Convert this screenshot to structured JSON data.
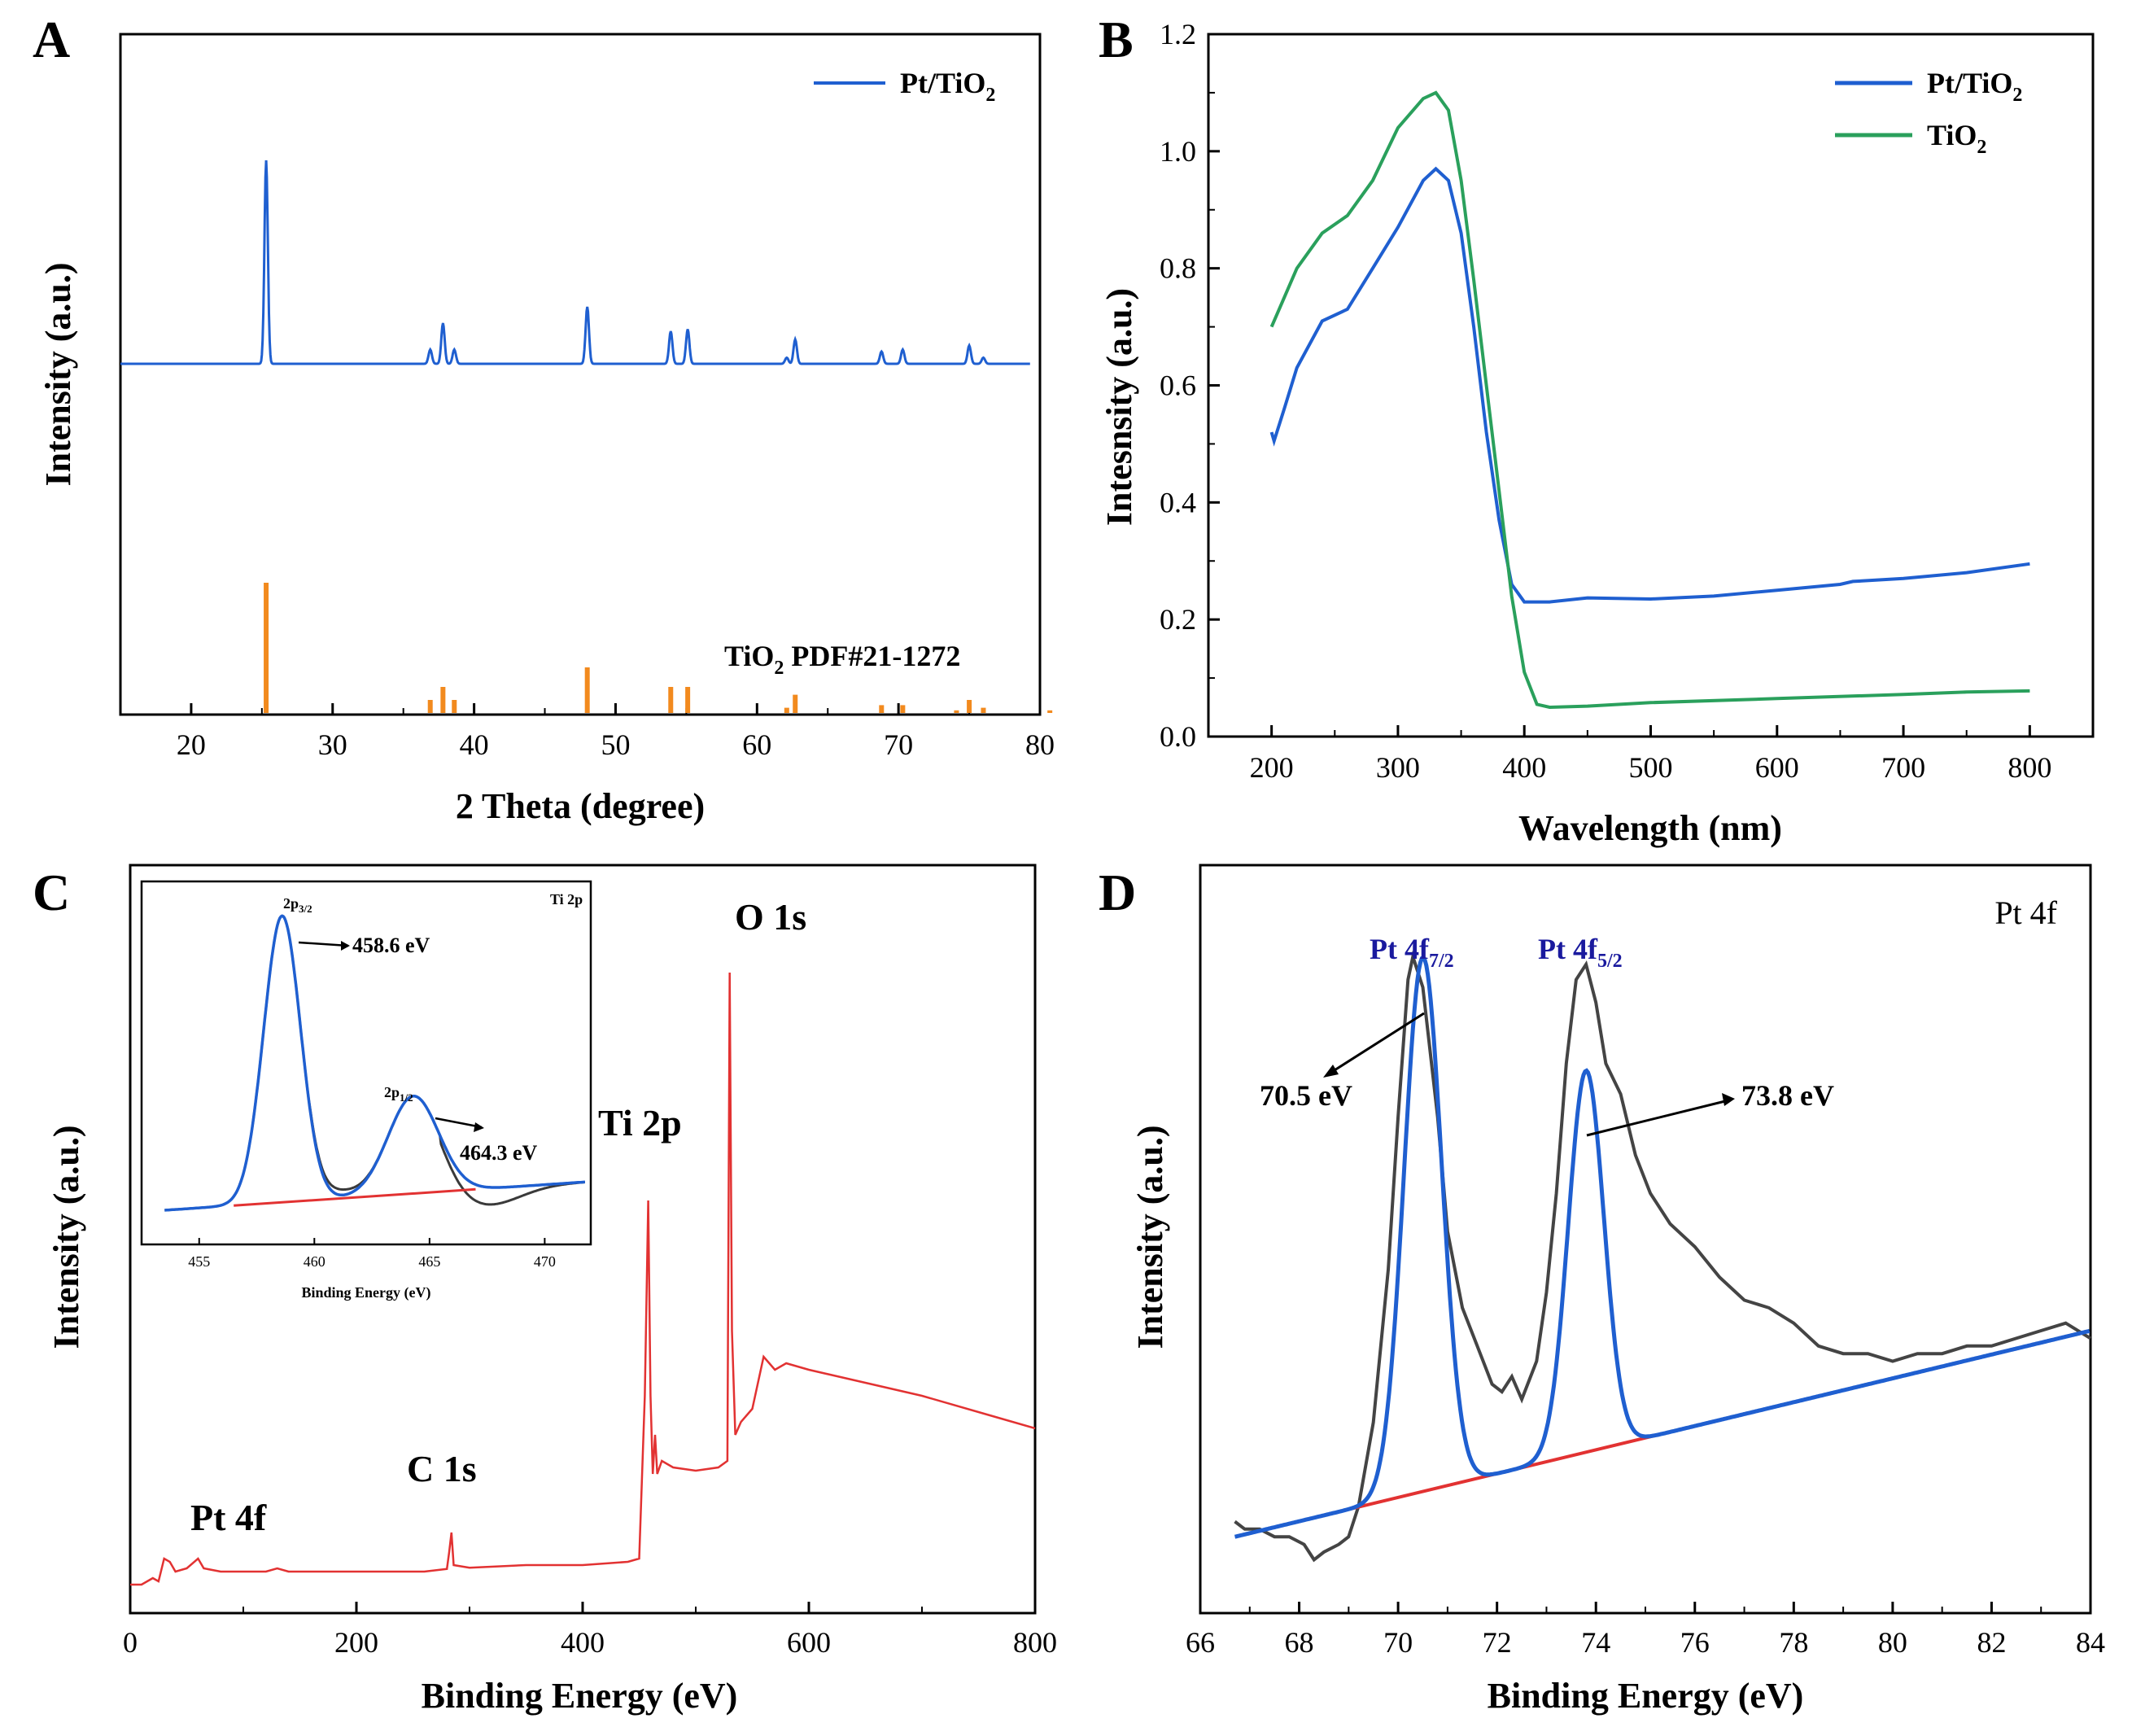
{
  "chart_data": [
    {
      "panel": "A",
      "type": "line",
      "xlabel": "2 Theta (degree)",
      "ylabel": "Intensity (a.u.)",
      "xlim": [
        15,
        80
      ],
      "xticks": [
        "20",
        "30",
        "40",
        "50",
        "60",
        "70",
        "80"
      ],
      "series": [
        {
          "name": "Pt/TiO2",
          "legend_text": "Pt/TiO",
          "legend_sub": "2",
          "color": "#1f5fd0",
          "baseline": 0,
          "peaks": [
            {
              "x": 25.3,
              "h": 1.0
            },
            {
              "x": 36.9,
              "h": 0.07
            },
            {
              "x": 37.8,
              "h": 0.2
            },
            {
              "x": 38.6,
              "h": 0.07
            },
            {
              "x": 48.0,
              "h": 0.28
            },
            {
              "x": 53.9,
              "h": 0.16
            },
            {
              "x": 55.1,
              "h": 0.17
            },
            {
              "x": 62.1,
              "h": 0.03
            },
            {
              "x": 62.7,
              "h": 0.12
            },
            {
              "x": 68.8,
              "h": 0.06
            },
            {
              "x": 70.3,
              "h": 0.07
            },
            {
              "x": 75.0,
              "h": 0.09
            },
            {
              "x": 76.0,
              "h": 0.03
            }
          ]
        }
      ],
      "reference": {
        "label": "TiO",
        "label_sub": "2",
        "label_rest": " PDF#21-1272",
        "color": "#f28a1e",
        "sticks": [
          {
            "x": 25.3,
            "h": 100
          },
          {
            "x": 36.9,
            "h": 10
          },
          {
            "x": 37.8,
            "h": 20
          },
          {
            "x": 38.6,
            "h": 10
          },
          {
            "x": 48.0,
            "h": 35
          },
          {
            "x": 53.9,
            "h": 20
          },
          {
            "x": 55.1,
            "h": 20
          },
          {
            "x": 62.1,
            "h": 4
          },
          {
            "x": 62.7,
            "h": 14
          },
          {
            "x": 68.8,
            "h": 6
          },
          {
            "x": 70.3,
            "h": 6
          },
          {
            "x": 74.1,
            "h": 2
          },
          {
            "x": 75.0,
            "h": 10
          },
          {
            "x": 76.0,
            "h": 4
          },
          {
            "x": 80.7,
            "h": 2
          }
        ]
      }
    },
    {
      "panel": "B",
      "type": "line",
      "xlabel": "Wavelength (nm)",
      "ylabel": "Intesnsity (a.u.)",
      "xlim": [
        150,
        850
      ],
      "ylim": [
        0.0,
        1.2
      ],
      "xticks": [
        "200",
        "300",
        "400",
        "500",
        "600",
        "700",
        "800"
      ],
      "yticks": [
        "0.0",
        "0.2",
        "0.4",
        "0.6",
        "0.8",
        "1.0",
        "1.2"
      ],
      "series": [
        {
          "name": "Pt/TiO2",
          "legend_text": "Pt/TiO",
          "legend_sub": "2",
          "color": "#1f5fd0",
          "points": [
            [
              200,
              0.52
            ],
            [
              202,
              0.505
            ],
            [
              210,
              0.56
            ],
            [
              220,
              0.63
            ],
            [
              240,
              0.71
            ],
            [
              260,
              0.73
            ],
            [
              280,
              0.8
            ],
            [
              300,
              0.87
            ],
            [
              320,
              0.95
            ],
            [
              330,
              0.97
            ],
            [
              340,
              0.95
            ],
            [
              350,
              0.86
            ],
            [
              360,
              0.7
            ],
            [
              370,
              0.52
            ],
            [
              380,
              0.37
            ],
            [
              390,
              0.26
            ],
            [
              400,
              0.23
            ],
            [
              420,
              0.23
            ],
            [
              450,
              0.237
            ],
            [
              500,
              0.235
            ],
            [
              550,
              0.24
            ],
            [
              600,
              0.25
            ],
            [
              650,
              0.26
            ],
            [
              660,
              0.265
            ],
            [
              700,
              0.27
            ],
            [
              750,
              0.28
            ],
            [
              800,
              0.295
            ]
          ]
        },
        {
          "name": "TiO2",
          "legend_text": "TiO",
          "legend_sub": "2",
          "color": "#2aa05c",
          "points": [
            [
              200,
              0.7
            ],
            [
              210,
              0.75
            ],
            [
              220,
              0.8
            ],
            [
              240,
              0.86
            ],
            [
              260,
              0.89
            ],
            [
              280,
              0.95
            ],
            [
              300,
              1.04
            ],
            [
              320,
              1.09
            ],
            [
              330,
              1.1
            ],
            [
              340,
              1.07
            ],
            [
              350,
              0.95
            ],
            [
              360,
              0.78
            ],
            [
              370,
              0.6
            ],
            [
              380,
              0.42
            ],
            [
              390,
              0.24
            ],
            [
              400,
              0.11
            ],
            [
              410,
              0.055
            ],
            [
              420,
              0.05
            ],
            [
              450,
              0.052
            ],
            [
              500,
              0.058
            ],
            [
              600,
              0.065
            ],
            [
              700,
              0.072
            ],
            [
              750,
              0.076
            ],
            [
              800,
              0.078
            ]
          ]
        }
      ]
    },
    {
      "panel": "C",
      "type": "line",
      "xlabel": "Binding Energy (eV)",
      "ylabel": "Intensity (a.u.)",
      "xlim": [
        0,
        800
      ],
      "xticks": [
        "0",
        "200",
        "400",
        "600",
        "800"
      ],
      "series": [
        {
          "name": "survey",
          "color": "#e23232",
          "points": [
            [
              0,
              0.01
            ],
            [
              10,
              0.01
            ],
            [
              20,
              0.02
            ],
            [
              25,
              0.015
            ],
            [
              30,
              0.05
            ],
            [
              35,
              0.045
            ],
            [
              40,
              0.03
            ],
            [
              50,
              0.035
            ],
            [
              60,
              0.05
            ],
            [
              65,
              0.035
            ],
            [
              80,
              0.03
            ],
            [
              120,
              0.03
            ],
            [
              130,
              0.035
            ],
            [
              140,
              0.03
            ],
            [
              200,
              0.03
            ],
            [
              260,
              0.03
            ],
            [
              280,
              0.034
            ],
            [
              282,
              0.06
            ],
            [
              284,
              0.09
            ],
            [
              286,
              0.04
            ],
            [
              300,
              0.036
            ],
            [
              350,
              0.04
            ],
            [
              400,
              0.04
            ],
            [
              440,
              0.045
            ],
            [
              450,
              0.05
            ],
            [
              455,
              0.3
            ],
            [
              458,
              0.6
            ],
            [
              460,
              0.3
            ],
            [
              462,
              0.18
            ],
            [
              464,
              0.24
            ],
            [
              466,
              0.18
            ],
            [
              470,
              0.2
            ],
            [
              480,
              0.19
            ],
            [
              500,
              0.185
            ],
            [
              520,
              0.19
            ],
            [
              528,
              0.2
            ],
            [
              530,
              0.95
            ],
            [
              532,
              0.4
            ],
            [
              535,
              0.24
            ],
            [
              540,
              0.26
            ],
            [
              550,
              0.28
            ],
            [
              560,
              0.36
            ],
            [
              570,
              0.34
            ],
            [
              580,
              0.35
            ],
            [
              600,
              0.34
            ],
            [
              650,
              0.32
            ],
            [
              700,
              0.3
            ],
            [
              760,
              0.27
            ],
            [
              800,
              0.25
            ]
          ]
        }
      ],
      "annotations": {
        "pt4f": "Pt 4f",
        "c1s": "C 1s",
        "ti2p": "Ti 2p",
        "o1s": "O 1s"
      },
      "inset": {
        "title": "Ti 2p",
        "xlabel": "Binding Energy (eV)",
        "xlim": [
          452.5,
          472
        ],
        "xticks": [
          "455",
          "460",
          "465",
          "470"
        ],
        "peak1_label_main": "2p",
        "peak1_label_sub": "3/2",
        "peak1_value": "458.6 eV",
        "peak2_label_main": "2p",
        "peak2_label_sub": "1/2",
        "peak2_value": "464.3 eV",
        "raw_color": "#3a3a3a",
        "fit_color": "#1f5fd0",
        "baseline_color": "#e23232",
        "peaks": [
          {
            "x": 458.6,
            "h": 1.0,
            "w": 0.8
          },
          {
            "x": 464.3,
            "h": 0.34,
            "w": 1.1
          }
        ]
      }
    },
    {
      "panel": "D",
      "type": "line",
      "xlabel": "Binding Energy (eV)",
      "ylabel": "Intensity (a.u.)",
      "xlim": [
        66,
        84
      ],
      "xticks": [
        "66",
        "68",
        "70",
        "72",
        "74",
        "76",
        "78",
        "80",
        "82",
        "84"
      ],
      "corner_label": "Pt 4f",
      "peak1_main": "Pt 4f",
      "peak1_sub": "7/2",
      "peak2_main": "Pt 4f",
      "peak2_sub": "5/2",
      "peak1_value": "70.5 eV",
      "peak2_value": "73.8 eV",
      "label_color": "#1a1a9e",
      "raw_color": "#444444",
      "fit_color": "#1f5fd0",
      "baseline_color": "#e23232",
      "raw_points": [
        [
          66.7,
          0.02
        ],
        [
          66.9,
          0.01
        ],
        [
          67.2,
          0.01
        ],
        [
          67.5,
          0.0
        ],
        [
          67.8,
          0.0
        ],
        [
          68.1,
          -0.01
        ],
        [
          68.3,
          -0.03
        ],
        [
          68.5,
          -0.02
        ],
        [
          68.8,
          -0.01
        ],
        [
          69.0,
          0.0
        ],
        [
          69.2,
          0.04
        ],
        [
          69.5,
          0.15
        ],
        [
          69.8,
          0.35
        ],
        [
          70.0,
          0.55
        ],
        [
          70.2,
          0.73
        ],
        [
          70.3,
          0.76
        ],
        [
          70.5,
          0.72
        ],
        [
          70.8,
          0.55
        ],
        [
          71.0,
          0.4
        ],
        [
          71.3,
          0.3
        ],
        [
          71.6,
          0.25
        ],
        [
          71.9,
          0.2
        ],
        [
          72.1,
          0.19
        ],
        [
          72.3,
          0.21
        ],
        [
          72.5,
          0.18
        ],
        [
          72.8,
          0.23
        ],
        [
          73.0,
          0.32
        ],
        [
          73.2,
          0.45
        ],
        [
          73.4,
          0.62
        ],
        [
          73.6,
          0.73
        ],
        [
          73.8,
          0.75
        ],
        [
          74.0,
          0.7
        ],
        [
          74.2,
          0.62
        ],
        [
          74.5,
          0.58
        ],
        [
          74.8,
          0.5
        ],
        [
          75.1,
          0.45
        ],
        [
          75.5,
          0.41
        ],
        [
          76.0,
          0.38
        ],
        [
          76.5,
          0.34
        ],
        [
          77.0,
          0.31
        ],
        [
          77.5,
          0.3
        ],
        [
          78.0,
          0.28
        ],
        [
          78.5,
          0.25
        ],
        [
          79.0,
          0.24
        ],
        [
          79.5,
          0.24
        ],
        [
          80.0,
          0.23
        ],
        [
          80.5,
          0.24
        ],
        [
          81.0,
          0.24
        ],
        [
          81.5,
          0.25
        ],
        [
          82.0,
          0.25
        ],
        [
          82.5,
          0.26
        ],
        [
          83.0,
          0.27
        ],
        [
          83.5,
          0.28
        ],
        [
          84.0,
          0.26
        ]
      ],
      "baseline": [
        [
          66.7,
          0.0
        ],
        [
          84.0,
          0.27
        ]
      ],
      "fit_peaks": [
        {
          "x": 70.5,
          "h": 0.7,
          "w": 0.38
        },
        {
          "x": 73.8,
          "h": 0.5,
          "w": 0.36
        }
      ],
      "ylim": [
        -0.1,
        0.88
      ]
    }
  ],
  "panels": {
    "a": "A",
    "b": "B",
    "c": "C",
    "d": "D"
  }
}
